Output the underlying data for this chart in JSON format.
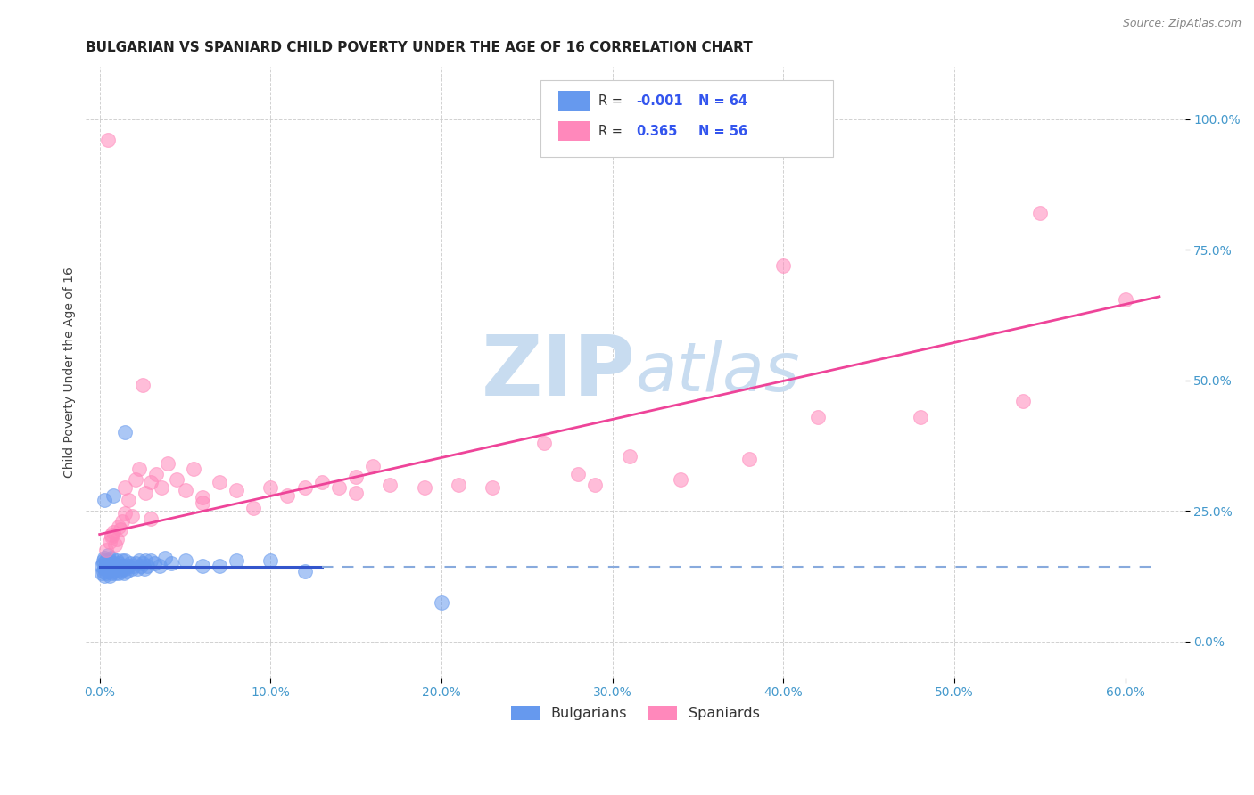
{
  "title": "BULGARIAN VS SPANIARD CHILD POVERTY UNDER THE AGE OF 16 CORRELATION CHART",
  "source": "Source: ZipAtlas.com",
  "ylabel": "Child Poverty Under the Age of 16",
  "xlabel_ticks": [
    "0.0%",
    "10.0%",
    "20.0%",
    "30.0%",
    "40.0%",
    "50.0%",
    "60.0%"
  ],
  "ytick_labels": [
    "0.0%",
    "25.0%",
    "50.0%",
    "75.0%",
    "100.0%"
  ],
  "ytick_vals": [
    0.0,
    0.25,
    0.5,
    0.75,
    1.0
  ],
  "xtick_vals": [
    0.0,
    0.1,
    0.2,
    0.3,
    0.4,
    0.5,
    0.6
  ],
  "xlim": [
    -0.008,
    0.635
  ],
  "ylim": [
    -0.07,
    1.1
  ],
  "bulgarian_R": -0.001,
  "bulgarian_N": 64,
  "spaniard_R": 0.365,
  "spaniard_N": 56,
  "bulgarian_color": "#6699EE",
  "spaniard_color": "#FF88BB",
  "bg_color": "#FFFFFF",
  "watermark_color": "#C8DCF0",
  "legend_label_bulgarian": "Bulgarians",
  "legend_label_spaniard": "Spaniards",
  "bulgarian_scatter_x": [
    0.001,
    0.001,
    0.002,
    0.002,
    0.002,
    0.003,
    0.003,
    0.003,
    0.004,
    0.004,
    0.004,
    0.005,
    0.005,
    0.005,
    0.006,
    0.006,
    0.006,
    0.007,
    0.007,
    0.007,
    0.008,
    0.008,
    0.009,
    0.009,
    0.01,
    0.01,
    0.011,
    0.011,
    0.012,
    0.012,
    0.013,
    0.013,
    0.014,
    0.014,
    0.015,
    0.015,
    0.016,
    0.017,
    0.018,
    0.019,
    0.02,
    0.021,
    0.022,
    0.023,
    0.024,
    0.025,
    0.026,
    0.027,
    0.028,
    0.03,
    0.032,
    0.035,
    0.038,
    0.042,
    0.05,
    0.06,
    0.07,
    0.08,
    0.1,
    0.12,
    0.003,
    0.008,
    0.015,
    0.2
  ],
  "bulgarian_scatter_y": [
    0.13,
    0.145,
    0.135,
    0.15,
    0.155,
    0.125,
    0.14,
    0.16,
    0.13,
    0.145,
    0.155,
    0.135,
    0.15,
    0.165,
    0.125,
    0.14,
    0.155,
    0.13,
    0.145,
    0.16,
    0.135,
    0.15,
    0.13,
    0.145,
    0.14,
    0.155,
    0.13,
    0.15,
    0.135,
    0.145,
    0.14,
    0.155,
    0.13,
    0.145,
    0.14,
    0.155,
    0.135,
    0.145,
    0.15,
    0.14,
    0.145,
    0.15,
    0.14,
    0.155,
    0.145,
    0.15,
    0.14,
    0.155,
    0.145,
    0.155,
    0.15,
    0.145,
    0.16,
    0.15,
    0.155,
    0.145,
    0.145,
    0.155,
    0.155,
    0.135,
    0.27,
    0.28,
    0.4,
    0.075
  ],
  "spaniard_scatter_x": [
    0.004,
    0.005,
    0.006,
    0.007,
    0.008,
    0.009,
    0.01,
    0.011,
    0.012,
    0.013,
    0.015,
    0.017,
    0.019,
    0.021,
    0.023,
    0.025,
    0.027,
    0.03,
    0.033,
    0.036,
    0.04,
    0.045,
    0.05,
    0.055,
    0.06,
    0.07,
    0.08,
    0.09,
    0.1,
    0.11,
    0.12,
    0.13,
    0.14,
    0.15,
    0.16,
    0.17,
    0.19,
    0.21,
    0.23,
    0.26,
    0.29,
    0.31,
    0.34,
    0.38,
    0.42,
    0.48,
    0.54,
    0.6,
    0.007,
    0.015,
    0.03,
    0.06,
    0.15,
    0.28,
    0.4,
    0.55
  ],
  "spaniard_scatter_y": [
    0.175,
    0.96,
    0.19,
    0.2,
    0.21,
    0.185,
    0.195,
    0.22,
    0.215,
    0.23,
    0.295,
    0.27,
    0.24,
    0.31,
    0.33,
    0.49,
    0.285,
    0.305,
    0.32,
    0.295,
    0.34,
    0.31,
    0.29,
    0.33,
    0.265,
    0.305,
    0.29,
    0.255,
    0.295,
    0.28,
    0.295,
    0.305,
    0.295,
    0.315,
    0.335,
    0.3,
    0.295,
    0.3,
    0.295,
    0.38,
    0.3,
    0.355,
    0.31,
    0.35,
    0.43,
    0.43,
    0.46,
    0.655,
    0.205,
    0.245,
    0.235,
    0.275,
    0.285,
    0.32,
    0.72,
    0.82
  ],
  "spaniard_line_x0": 0.0,
  "spaniard_line_y0": 0.205,
  "spaniard_line_x1": 0.62,
  "spaniard_line_y1": 0.66,
  "bulgarian_line_y": 0.143,
  "title_fontsize": 11,
  "axis_label_fontsize": 10,
  "tick_fontsize": 10,
  "source_fontsize": 9
}
